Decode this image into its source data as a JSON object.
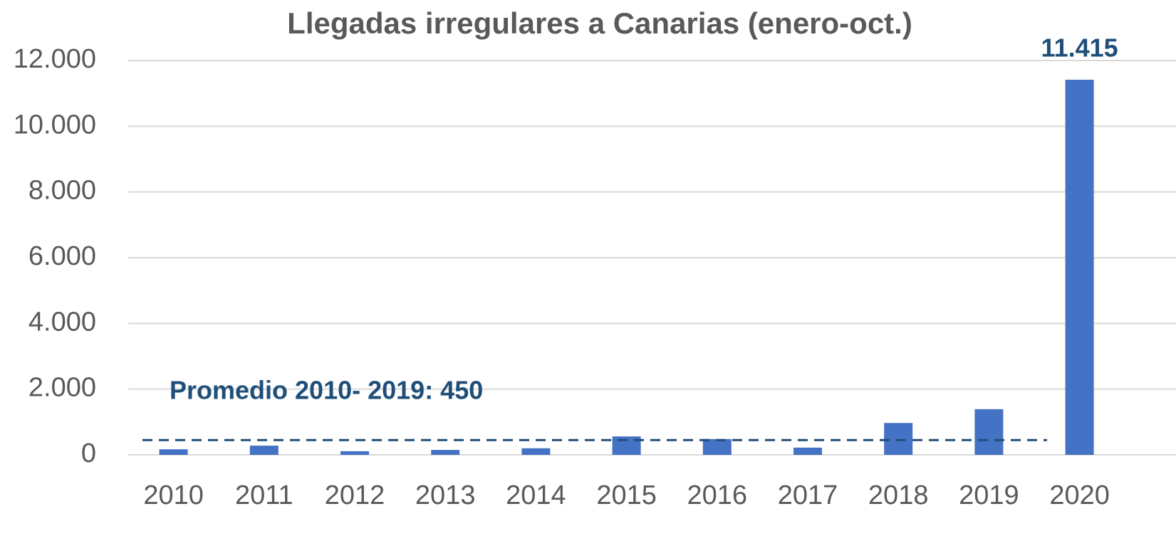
{
  "chart_data": {
    "type": "bar",
    "title": "Llegadas irregulares a Canarias (enero-oct.)",
    "categories": [
      "2010",
      "2011",
      "2012",
      "2013",
      "2014",
      "2015",
      "2016",
      "2017",
      "2018",
      "2019",
      "2020"
    ],
    "values": [
      170,
      280,
      110,
      150,
      200,
      560,
      480,
      220,
      970,
      1390,
      11415
    ],
    "value_labels": [
      null,
      null,
      null,
      null,
      null,
      null,
      null,
      null,
      null,
      null,
      "11.415"
    ],
    "color": "#4472c4",
    "ylim": [
      0,
      12000
    ],
    "yticks": [
      0,
      {
        "value": 2000,
        "label": "2.000"
      },
      {
        "value": 4000,
        "label": "4.000"
      },
      {
        "value": 6000,
        "label": "6.000"
      },
      {
        "value": 8000,
        "label": "8.000"
      },
      {
        "value": 10000,
        "label": "10.000"
      },
      {
        "value": 12000,
        "label": "12.000"
      }
    ],
    "grid": true,
    "reference_line": {
      "value": 450,
      "label": "Promedio 2010- 2019: 450",
      "color": "#1f4e79"
    }
  }
}
